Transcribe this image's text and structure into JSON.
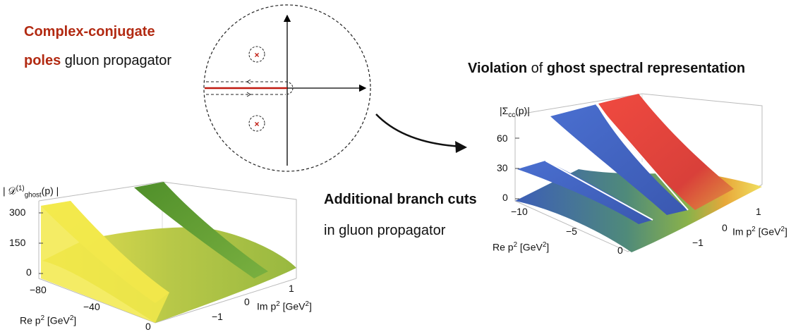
{
  "top_left_caption": {
    "line1": "Complex-conjugate",
    "line2_red": "poles",
    "line2_rest": " gluon propagator"
  },
  "top_right_caption": {
    "bold1": "Violation",
    "mid": " of ",
    "bold2": "ghost spectral representation"
  },
  "bottom_caption": {
    "line1": "Additional branch cuts",
    "line2": "in gluon propagator"
  },
  "colors": {
    "accent_red": "#b22a12",
    "blue_surface": "#4a6fcf",
    "red_surface": "#e8463f",
    "green_surface": "#5aa02f",
    "yellow_surface": "#f2ea4a"
  },
  "ghost_plot": {
    "zlabel": "|Σ",
    "zlabel_sub": "cc",
    "zlabel_end": "(p)|",
    "z_ticks": [
      "60",
      "30",
      "0"
    ],
    "re_ticks": [
      "−10",
      "−5",
      "0"
    ],
    "im_ticks": [
      "1",
      "0",
      "−1"
    ],
    "re_label": "Re p",
    "re_unit": " [GeV",
    "im_label": "Im p",
    "im_unit": " [GeV"
  },
  "gluon_plot": {
    "zlabel_pre": "| 𝒟",
    "zlabel_sup": "(1)",
    "zlabel_sub": "ghost",
    "zlabel_end": "(p) |",
    "z_ticks": [
      "300",
      "150",
      "0"
    ],
    "re_ticks": [
      "−80",
      "−40",
      "0"
    ],
    "im_ticks": [
      "1",
      "0",
      "−1"
    ],
    "re_label": "Re p",
    "re_unit": " [GeV",
    "im_label": "Im p",
    "im_unit": " [GeV"
  },
  "superscript_two": "2",
  "unit_close": "]"
}
